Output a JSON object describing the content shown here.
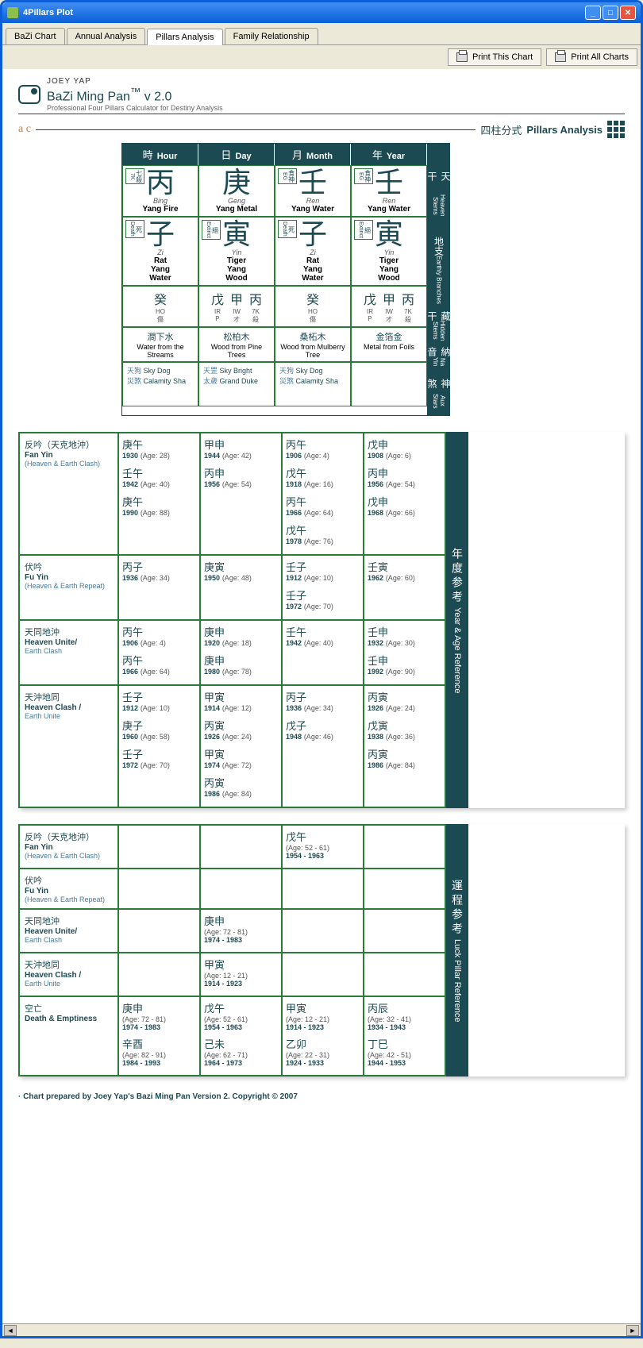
{
  "window": {
    "title": "4Pillars Plot"
  },
  "tabs": [
    "BaZi Chart",
    "Annual Analysis",
    "Pillars Analysis",
    "Family Relationship"
  ],
  "activeTab": 2,
  "toolbar": {
    "printThis": "Print This Chart",
    "printAll": "Print All Charts"
  },
  "brand": {
    "author": "JOEY YAP",
    "product": "BaZi Ming Pan",
    "tm": "™",
    "version": "v 2.0",
    "tagline": "Professional Four Pillars Calculator for Destiny Analysis"
  },
  "ac": "a c",
  "section": {
    "cn": "四柱分式",
    "en": "Pillars Analysis"
  },
  "colHeaders": [
    {
      "cn": "時",
      "en": "Hour"
    },
    {
      "cn": "日",
      "en": "Day"
    },
    {
      "cn": "月",
      "en": "Month"
    },
    {
      "cn": "年",
      "en": "Year"
    }
  ],
  "sideLabels": {
    "hs": {
      "cn": "天干",
      "en": "Heaven Stems"
    },
    "eb": {
      "cn": "地支",
      "en": "Earthly Branches"
    },
    "hidden": {
      "cn": "藏干",
      "en": "Hidden Stems"
    },
    "nayin": {
      "cn": "納音",
      "en": "Na Yin"
    },
    "aux": {
      "cn": "神煞",
      "en": "Aux Stars"
    }
  },
  "stems": [
    {
      "badge_cn": "七殺",
      "badge_en": "7K",
      "char": "丙",
      "pin": "Bing",
      "eng": "Yang Fire"
    },
    {
      "badge_cn": "",
      "badge_en": "",
      "char": "庚",
      "pin": "Geng",
      "eng": "Yang Metal"
    },
    {
      "badge_cn": "食神",
      "badge_en": "EG",
      "char": "壬",
      "pin": "Ren",
      "eng": "Yang Water"
    },
    {
      "badge_cn": "食神",
      "badge_en": "EG",
      "char": "壬",
      "pin": "Ren",
      "eng": "Yang Water"
    }
  ],
  "branches": [
    {
      "badge_cn": "死",
      "badge_en": "Death",
      "char": "子",
      "pin": "Zi",
      "eng1": "Rat",
      "eng2": "Yang",
      "eng3": "Water"
    },
    {
      "badge_cn": "絕",
      "badge_en": "Extinct",
      "char": "寅",
      "pin": "Yin",
      "eng1": "Tiger",
      "eng2": "Yang",
      "eng3": "Wood"
    },
    {
      "badge_cn": "死",
      "badge_en": "Death",
      "char": "子",
      "pin": "Zi",
      "eng1": "Rat",
      "eng2": "Yang",
      "eng3": "Water"
    },
    {
      "badge_cn": "絕",
      "badge_en": "Extinct",
      "char": "寅",
      "pin": "Yin",
      "eng1": "Tiger",
      "eng2": "Yang",
      "eng3": "Wood"
    }
  ],
  "hidden": [
    [
      {
        "char": "癸",
        "code": "HO",
        "sub": "傷"
      }
    ],
    [
      {
        "char": "戊",
        "code": "IR",
        "sub": "P"
      },
      {
        "char": "甲",
        "code": "IW",
        "sub": "才"
      },
      {
        "char": "丙",
        "code": "7K",
        "sub": "殺"
      }
    ],
    [
      {
        "char": "癸",
        "code": "HO",
        "sub": "傷"
      }
    ],
    [
      {
        "char": "戊",
        "code": "IR",
        "sub": "P"
      },
      {
        "char": "甲",
        "code": "IW",
        "sub": "才"
      },
      {
        "char": "丙",
        "code": "7K",
        "sub": "殺"
      }
    ]
  ],
  "nayin": [
    {
      "cn": "澗下水",
      "en": "Water from the Streams"
    },
    {
      "cn": "松柏木",
      "en": "Wood from Pine Trees"
    },
    {
      "cn": "桑柘木",
      "en": "Wood from Mulberry Tree"
    },
    {
      "cn": "金箔金",
      "en": "Metal from Foils"
    }
  ],
  "aux": [
    [
      {
        "cn": "天狗",
        "en": "Sky Dog"
      },
      {
        "cn": "災煞",
        "en": "Calamity Sha"
      }
    ],
    [
      {
        "cn": "天罡",
        "en": "Sky Bright"
      },
      {
        "cn": "太歲",
        "en": "Grand Duke"
      }
    ],
    [
      {
        "cn": "天狗",
        "en": "Sky Dog"
      },
      {
        "cn": "災煞",
        "en": "Calamity Sha"
      }
    ],
    []
  ],
  "yearRef": {
    "sideCn": "年度参考",
    "sideEn": "Year & Age Reference",
    "rows": [
      {
        "label_cn": "反吟（天克地沖）",
        "label_en": "Fan Yin",
        "label_sub": "(Heaven & Earth Clash)",
        "cells": [
          [
            {
              "cn": "庚午",
              "yr": "1930",
              "age": "28"
            },
            {
              "cn": "壬午",
              "yr": "1942",
              "age": "40"
            },
            {
              "cn": "庚午",
              "yr": "1990",
              "age": "88"
            }
          ],
          [
            {
              "cn": "甲申",
              "yr": "1944",
              "age": "42"
            },
            {
              "cn": "丙申",
              "yr": "1956",
              "age": "54"
            }
          ],
          [
            {
              "cn": "丙午",
              "yr": "1906",
              "age": "4"
            },
            {
              "cn": "戊午",
              "yr": "1918",
              "age": "16"
            },
            {
              "cn": "丙午",
              "yr": "1966",
              "age": "64"
            },
            {
              "cn": "戊午",
              "yr": "1978",
              "age": "76"
            }
          ],
          [
            {
              "cn": "戊申",
              "yr": "1908",
              "age": "6"
            },
            {
              "cn": "丙申",
              "yr": "1956",
              "age": "54"
            },
            {
              "cn": "戊申",
              "yr": "1968",
              "age": "66"
            }
          ]
        ]
      },
      {
        "label_cn": "伏吟",
        "label_en": "Fu Yin",
        "label_sub": "(Heaven & Earth Repeat)",
        "cells": [
          [
            {
              "cn": "丙子",
              "yr": "1936",
              "age": "34"
            }
          ],
          [
            {
              "cn": "庚寅",
              "yr": "1950",
              "age": "48"
            }
          ],
          [
            {
              "cn": "壬子",
              "yr": "1912",
              "age": "10"
            },
            {
              "cn": "壬子",
              "yr": "1972",
              "age": "70"
            }
          ],
          [
            {
              "cn": "壬寅",
              "yr": "1962",
              "age": "60"
            }
          ]
        ]
      },
      {
        "label_cn": "天同地沖",
        "label_en": "Heaven Unite/",
        "label_sub": "Earth Clash",
        "cells": [
          [
            {
              "cn": "丙午",
              "yr": "1906",
              "age": "4"
            },
            {
              "cn": "丙午",
              "yr": "1966",
              "age": "64"
            }
          ],
          [
            {
              "cn": "庚申",
              "yr": "1920",
              "age": "18"
            },
            {
              "cn": "庚申",
              "yr": "1980",
              "age": "78"
            }
          ],
          [
            {
              "cn": "壬午",
              "yr": "1942",
              "age": "40"
            }
          ],
          [
            {
              "cn": "壬申",
              "yr": "1932",
              "age": "30"
            },
            {
              "cn": "壬申",
              "yr": "1992",
              "age": "90"
            }
          ]
        ]
      },
      {
        "label_cn": "天沖地同",
        "label_en": "Heaven Clash /",
        "label_sub": "Earth Unite",
        "cells": [
          [
            {
              "cn": "壬子",
              "yr": "1912",
              "age": "10"
            },
            {
              "cn": "庚子",
              "yr": "1960",
              "age": "58"
            },
            {
              "cn": "壬子",
              "yr": "1972",
              "age": "70"
            }
          ],
          [
            {
              "cn": "甲寅",
              "yr": "1914",
              "age": "12"
            },
            {
              "cn": "丙寅",
              "yr": "1926",
              "age": "24"
            },
            {
              "cn": "甲寅",
              "yr": "1974",
              "age": "72"
            },
            {
              "cn": "丙寅",
              "yr": "1986",
              "age": "84"
            }
          ],
          [
            {
              "cn": "丙子",
              "yr": "1936",
              "age": "34"
            },
            {
              "cn": "戊子",
              "yr": "1948",
              "age": "46"
            }
          ],
          [
            {
              "cn": "丙寅",
              "yr": "1926",
              "age": "24"
            },
            {
              "cn": "戊寅",
              "yr": "1938",
              "age": "36"
            },
            {
              "cn": "丙寅",
              "yr": "1986",
              "age": "84"
            }
          ]
        ]
      }
    ]
  },
  "luckRef": {
    "sideCn": "運程参考",
    "sideEn": "Luck Pillar Reference",
    "rows": [
      {
        "label_cn": "反吟（天克地沖）",
        "label_en": "Fan Yin",
        "label_sub": "(Heaven & Earth Clash)",
        "cells": [
          [],
          [],
          [
            {
              "cn": "戊午",
              "age": "52 - 61",
              "range": "1954 - 1963"
            }
          ],
          []
        ]
      },
      {
        "label_cn": "伏吟",
        "label_en": "Fu Yin",
        "label_sub": "(Heaven & Earth Repeat)",
        "cells": [
          [],
          [],
          [],
          []
        ]
      },
      {
        "label_cn": "天同地沖",
        "label_en": "Heaven Unite/",
        "label_sub": "Earth Clash",
        "cells": [
          [],
          [
            {
              "cn": "庚申",
              "age": "72 - 81",
              "range": "1974 - 1983"
            }
          ],
          [],
          []
        ]
      },
      {
        "label_cn": "天沖地同",
        "label_en": "Heaven Clash /",
        "label_sub": "Earth Unite",
        "cells": [
          [],
          [
            {
              "cn": "甲寅",
              "age": "12 - 21",
              "range": "1914 - 1923"
            }
          ],
          [],
          []
        ]
      },
      {
        "label_cn": "空亡",
        "label_en": "Death & Emptiness",
        "label_sub": "",
        "cells": [
          [
            {
              "cn": "庚申",
              "age": "72 - 81",
              "range": "1974 - 1983"
            },
            {
              "cn": "辛酉",
              "age": "82 - 91",
              "range": "1984 - 1993"
            }
          ],
          [
            {
              "cn": "戊午",
              "age": "52 - 61",
              "range": "1954 - 1963"
            },
            {
              "cn": "己未",
              "age": "62 - 71",
              "range": "1964 - 1973"
            }
          ],
          [
            {
              "cn": "甲寅",
              "age": "12 - 21",
              "range": "1914 - 1923"
            },
            {
              "cn": "乙卯",
              "age": "22 - 31",
              "range": "1924 - 1933"
            }
          ],
          [
            {
              "cn": "丙辰",
              "age": "32 - 41",
              "range": "1934 - 1943"
            },
            {
              "cn": "丁巳",
              "age": "42 - 51",
              "range": "1944 - 1953"
            }
          ]
        ]
      }
    ]
  },
  "footer": "· Chart prepared by Joey Yap's Bazi Ming Pan Version 2. Copyright © 2007"
}
